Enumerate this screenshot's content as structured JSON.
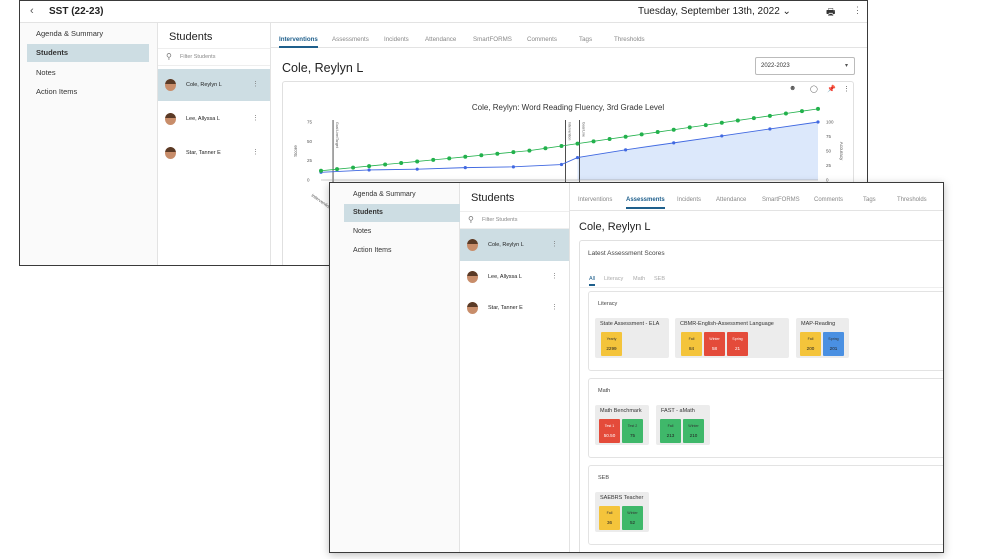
{
  "colors": {
    "accent": "#1e5f8c",
    "selected": "#cddde3",
    "green_line": "#22b14c",
    "blue_line": "#4169e1",
    "blue_area": "#dce8fb"
  },
  "winA": {
    "back_icon": "chevron-left",
    "title": "SST (22-23)",
    "date": "Tuesday, September 13th, 2022",
    "nav": [
      "Agenda & Summary",
      "Students",
      "Notes",
      "Action Items"
    ],
    "students_header": "Students",
    "filter_placeholder": "Filter Students",
    "students": [
      "Cole, Reylyn L",
      "Lee, Allyssa L",
      "Star, Tanner E"
    ],
    "tabs": [
      "Interventions",
      "Assessments",
      "Incidents",
      "Attendance",
      "SmartFORMS",
      "Comments",
      "Tags",
      "Thresholds"
    ],
    "student_name": "Cole, Reylyn L",
    "year": "2022-2023"
  },
  "chart_data": {
    "type": "line",
    "title": "Cole, Reylyn: Word Reading Fluency, 3rd Grade Level",
    "ylabel": "Score",
    "ylabel_right": "Accuracy",
    "y_ticks": [
      0,
      25,
      50,
      75
    ],
    "y_ticks_right": [
      0,
      25,
      50,
      75,
      100
    ],
    "ylim": [
      0,
      75
    ],
    "x_tick_label": "Interventions",
    "phase_labels": [
      "Goal Line/Target",
      "Intervention",
      "Goal Line"
    ],
    "series": [
      {
        "values": [
          12,
          14,
          16,
          18,
          20,
          22,
          24,
          26,
          28,
          30,
          32,
          34,
          36,
          38,
          41,
          44,
          47,
          50,
          53,
          56,
          59,
          62,
          65,
          68,
          71,
          74,
          77,
          80,
          83,
          86,
          89,
          92
        ]
      },
      {
        "values": [
          10,
          11,
          12,
          13,
          13,
          14,
          14,
          15,
          15,
          16,
          16,
          17,
          17,
          18,
          19,
          20,
          29,
          32,
          36,
          39,
          43,
          46,
          48,
          51,
          54,
          57,
          60,
          63,
          66,
          69,
          72,
          75
        ]
      }
    ]
  },
  "winB": {
    "nav": [
      "Agenda & Summary",
      "Students",
      "Notes",
      "Action Items"
    ],
    "students_header": "Students",
    "filter_placeholder": "Filter Students",
    "students": [
      "Cole, Reylyn L",
      "Lee, Allyssa L",
      "Star, Tanner E"
    ],
    "tabs": [
      "Interventions",
      "Assessments",
      "Incidents",
      "Attendance",
      "SmartFORMS",
      "Comments",
      "Tags",
      "Thresholds"
    ],
    "student_name": "Cole, Reylyn L",
    "scores_title": "Latest Assessment Scores",
    "subtabs": [
      "All",
      "Literacy",
      "Math",
      "SEB"
    ],
    "groups": [
      {
        "title": "Literacy",
        "assessments": [
          {
            "name": "State Assessment - ELA",
            "chips": [
              {
                "label": "Yearly",
                "value": "2299",
                "color": "yellow"
              }
            ]
          },
          {
            "name": "CBMR-English-Assessment Language",
            "chips": [
              {
                "label": "Fall",
                "value": "84",
                "color": "yellow"
              },
              {
                "label": "Winter",
                "value": "58",
                "color": "red"
              },
              {
                "label": "Spring",
                "value": "21",
                "color": "red"
              }
            ]
          },
          {
            "name": "MAP-Reading",
            "chips": [
              {
                "label": "Fall",
                "value": "200",
                "color": "yellow"
              },
              {
                "label": "Spring",
                "value": "201",
                "color": "blue"
              }
            ]
          }
        ]
      },
      {
        "title": "Math",
        "assessments": [
          {
            "name": "Math Benchmark",
            "chips": [
              {
                "label": "Test 1",
                "value": "50.50",
                "color": "red"
              },
              {
                "label": "Test 2",
                "value": "75",
                "color": "green"
              }
            ]
          },
          {
            "name": "FAST - aMath",
            "chips": [
              {
                "label": "Fall",
                "value": "213",
                "color": "green"
              },
              {
                "label": "Winter",
                "value": "210",
                "color": "green"
              }
            ]
          }
        ]
      },
      {
        "title": "SEB",
        "assessments": [
          {
            "name": "SAEBRS Teacher",
            "chips": [
              {
                "label": "Fall",
                "value": "36",
                "color": "yellow"
              },
              {
                "label": "Winter",
                "value": "52",
                "color": "green"
              }
            ]
          }
        ]
      }
    ]
  }
}
